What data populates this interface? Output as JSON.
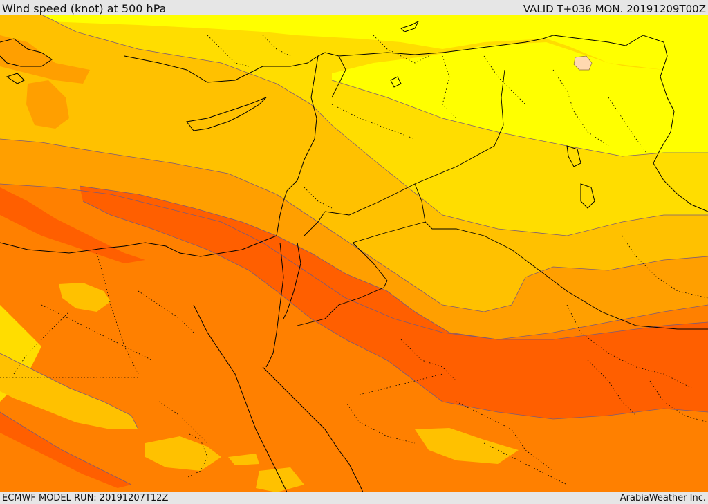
{
  "header": {
    "title": "Wind speed (knot) at 500 hPa",
    "valid": "VALID T+036 MON. 20191209T00Z"
  },
  "footer": {
    "model_run": "ECMWF MODEL RUN: 20191207T12Z",
    "credit": "ArabiaWeather Inc."
  },
  "palette": {
    "yellow": "#ffff00",
    "light_yellow_orange": "#ffdd00",
    "light_orange": "#ffc100",
    "orange": "#ff9f00",
    "dark_orange": "#ff8000",
    "red_orange": "#ff5f00",
    "pale_peach": "#ffd9b0"
  }
}
